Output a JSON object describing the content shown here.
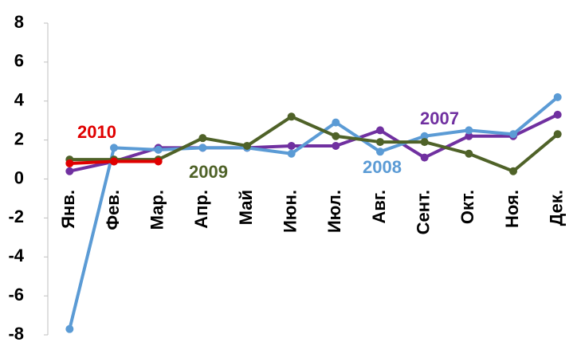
{
  "chart_data": {
    "type": "line",
    "categories": [
      "Янв.",
      "Фев.",
      "Мар.",
      "Апр.",
      "Май",
      "Июн.",
      "Июл.",
      "Авг.",
      "Сент.",
      "Окт.",
      "Ноя.",
      "Дек."
    ],
    "series": [
      {
        "name": "2007",
        "color": "#7030a0",
        "values": [
          0.4,
          0.9,
          1.6,
          1.6,
          1.6,
          1.7,
          1.7,
          2.5,
          1.1,
          2.2,
          2.2,
          3.3
        ]
      },
      {
        "name": "2008",
        "color": "#5b9bd5",
        "values": [
          -7.7,
          1.6,
          1.5,
          1.6,
          1.6,
          1.3,
          2.9,
          1.4,
          2.2,
          2.5,
          2.3,
          4.2
        ]
      },
      {
        "name": "2009",
        "color": "#4f6228",
        "values": [
          1.0,
          1.0,
          1.0,
          2.1,
          1.7,
          3.2,
          2.2,
          1.9,
          1.9,
          1.3,
          0.4,
          2.3
        ]
      },
      {
        "name": "2010",
        "color": "#e00000",
        "values": [
          0.8,
          0.9,
          0.9,
          null,
          null,
          null,
          null,
          null,
          null,
          null,
          null,
          null
        ]
      }
    ],
    "ylim": [
      -8,
      8
    ],
    "yticks": [
      -8,
      -6,
      -4,
      -2,
      0,
      2,
      4,
      6,
      8
    ]
  }
}
